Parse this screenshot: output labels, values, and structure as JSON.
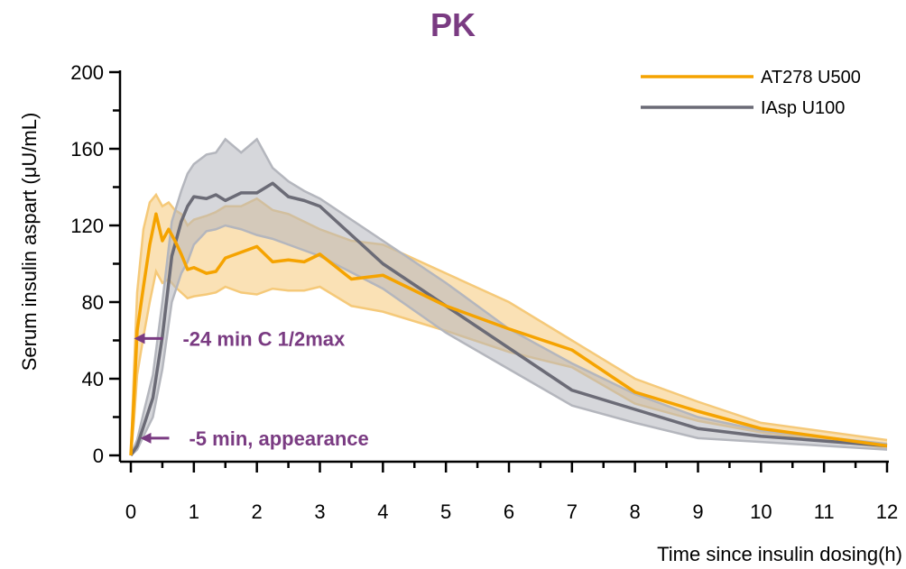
{
  "chart_data": {
    "type": "line",
    "title": "PK",
    "xlabel": "Time since insulin dosing(h)",
    "ylabel": "Serum insulin aspart (μU/mL)",
    "xlim": [
      0,
      12
    ],
    "ylim": [
      0,
      200
    ],
    "xticks": [
      0,
      1,
      2,
      3,
      4,
      5,
      6,
      7,
      8,
      9,
      10,
      11,
      12
    ],
    "yticks": [
      0,
      40,
      80,
      120,
      160,
      200
    ],
    "grid": false,
    "legend_position": "top-right",
    "series": [
      {
        "name": "AT278 U500",
        "color": "#f5a300",
        "band_color": "#f5c979",
        "x": [
          0,
          0.05,
          0.1,
          0.2,
          0.3,
          0.4,
          0.5,
          0.6,
          0.7,
          0.8,
          0.9,
          1.0,
          1.2,
          1.35,
          1.5,
          1.75,
          2.0,
          2.25,
          2.5,
          2.75,
          3.0,
          3.5,
          4.0,
          5.0,
          6.0,
          7.0,
          8.0,
          9.0,
          10.0,
          12.0
        ],
        "y": [
          0,
          30,
          65,
          88,
          110,
          126,
          112,
          118,
          112,
          105,
          97,
          98,
          95,
          96,
          103,
          106,
          109,
          101,
          102,
          101,
          105,
          92,
          94,
          78,
          66,
          55,
          33,
          23,
          14,
          5
        ],
        "upper": [
          0,
          45,
          85,
          118,
          132,
          136,
          130,
          132,
          128,
          126,
          120,
          123,
          125,
          127,
          130,
          130,
          134,
          128,
          126,
          122,
          118,
          112,
          110,
          95,
          80,
          60,
          40,
          28,
          17,
          8
        ],
        "lower": [
          0,
          18,
          42,
          62,
          80,
          96,
          90,
          92,
          88,
          85,
          82,
          83,
          84,
          85,
          88,
          85,
          84,
          87,
          86,
          86,
          88,
          78,
          75,
          65,
          54,
          46,
          27,
          18,
          12,
          4
        ]
      },
      {
        "name": "IAsp U100",
        "color": "#6b6b76",
        "band_color": "#b4b6bd",
        "x": [
          0,
          0.1,
          0.2,
          0.35,
          0.5,
          0.65,
          0.8,
          0.9,
          1.0,
          1.2,
          1.35,
          1.5,
          1.75,
          2.0,
          2.25,
          2.5,
          2.75,
          3.0,
          4.0,
          5.0,
          6.0,
          7.0,
          8.0,
          9.0,
          10.0,
          12.0
        ],
        "y": [
          0,
          5,
          15,
          30,
          62,
          104,
          122,
          130,
          135,
          134,
          136,
          133,
          137,
          137,
          142,
          135,
          133,
          130,
          100,
          78,
          56,
          34,
          24,
          14,
          10,
          5
        ],
        "upper": [
          0,
          8,
          22,
          42,
          80,
          122,
          138,
          147,
          152,
          157,
          158,
          165,
          158,
          165,
          150,
          143,
          138,
          134,
          112,
          90,
          66,
          48,
          32,
          20,
          13,
          6
        ],
        "lower": [
          0,
          3,
          10,
          20,
          45,
          80,
          95,
          101,
          110,
          117,
          118,
          120,
          118,
          115,
          113,
          110,
          107,
          104,
          87,
          64,
          45,
          26,
          17,
          9,
          7,
          3
        ]
      }
    ],
    "annotations": [
      {
        "text": "-24 min C 1/2max",
        "x": 0.05,
        "y": 61,
        "color": "#7a3b82"
      },
      {
        "text": "-5 min, appearance",
        "x": 0.15,
        "y": 9,
        "color": "#7a3b82"
      }
    ]
  }
}
